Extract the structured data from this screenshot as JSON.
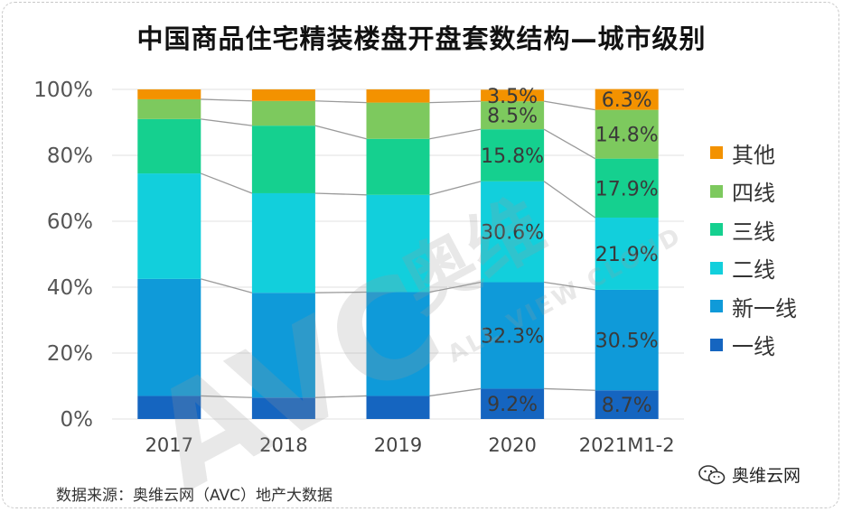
{
  "title": "中国商品住宅精装楼盘开盘套数结构—城市级别",
  "source": "数据来源：奥维云网（AVC）地产大数据",
  "brand": "奥维云网",
  "watermark": {
    "main": "AVC",
    "brand": "奥维",
    "sub": "ALL VIEW CLOUD"
  },
  "chart_data": {
    "type": "bar",
    "stacked": true,
    "categories": [
      "2017",
      "2018",
      "2019",
      "2020",
      "2021M1-2"
    ],
    "y_ticks": [
      "0%",
      "20%",
      "40%",
      "60%",
      "80%",
      "100%"
    ],
    "ylim": [
      0,
      100
    ],
    "series": [
      {
        "name": "一线",
        "color": "#1565c0",
        "values": [
          7.0,
          6.5,
          7.0,
          9.2,
          8.7
        ],
        "labels": [
          "",
          "",
          "",
          "9.2%",
          "8.7%"
        ]
      },
      {
        "name": "新一线",
        "color": "#0f9ad9",
        "values": [
          35.5,
          31.8,
          31.5,
          32.3,
          30.5
        ],
        "labels": [
          "",
          "",
          "",
          "32.3%",
          "30.5%"
        ]
      },
      {
        "name": "二线",
        "color": "#12cfdc",
        "values": [
          32.0,
          30.2,
          29.5,
          30.6,
          21.9
        ],
        "labels": [
          "",
          "",
          "",
          "30.6%",
          "21.9%"
        ]
      },
      {
        "name": "三线",
        "color": "#15d08f",
        "values": [
          16.5,
          20.5,
          17.0,
          15.8,
          17.9
        ],
        "labels": [
          "",
          "",
          "",
          "15.8%",
          "17.9%"
        ]
      },
      {
        "name": "四线",
        "color": "#7dc95e",
        "values": [
          6.0,
          7.5,
          11.0,
          8.5,
          14.8
        ],
        "labels": [
          "",
          "",
          "",
          "8.5%",
          "14.8%"
        ]
      },
      {
        "name": "其他",
        "color": "#f39200",
        "values": [
          3.0,
          3.5,
          4.0,
          3.5,
          6.3
        ],
        "labels": [
          "",
          "",
          "",
          "3.5%",
          "6.3%"
        ]
      }
    ],
    "legend_position": "right",
    "gridlines": true,
    "connector_lines": true
  }
}
